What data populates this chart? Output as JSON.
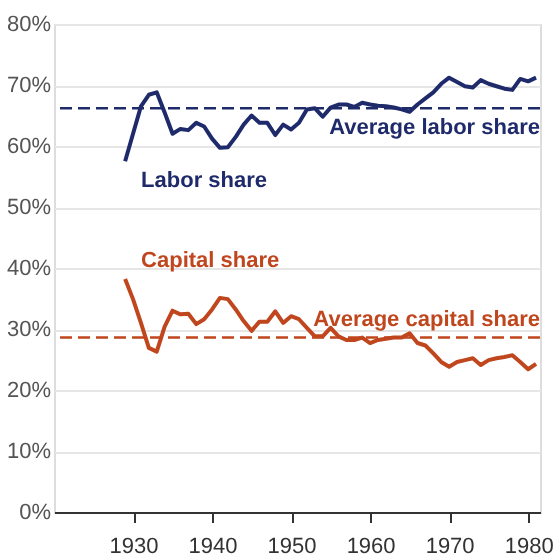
{
  "chart_data": {
    "type": "line",
    "x": [
      1929,
      1930,
      1931,
      1932,
      1933,
      1934,
      1935,
      1936,
      1937,
      1938,
      1939,
      1940,
      1941,
      1942,
      1943,
      1944,
      1945,
      1946,
      1947,
      1948,
      1949,
      1950,
      1951,
      1952,
      1953,
      1954,
      1955,
      1956,
      1957,
      1958,
      1959,
      1960,
      1961,
      1962,
      1963,
      1964,
      1965,
      1966,
      1967,
      1968,
      1969,
      1970,
      1971,
      1972,
      1973,
      1974,
      1975,
      1976,
      1977,
      1978,
      1979,
      1980,
      1981
    ],
    "series": [
      {
        "name": "Labor share",
        "color": "#1f2a6b",
        "values": [
          57.5,
          62,
          66.5,
          68.4,
          68.8,
          65.5,
          62,
          62.8,
          62.6,
          63.8,
          63.2,
          61.2,
          59.7,
          59.8,
          61.5,
          63.5,
          65,
          63.8,
          63.8,
          61.8,
          63.5,
          62.7,
          63.8,
          66,
          66.2,
          64.8,
          66.3,
          66.8,
          66.8,
          66.4,
          67.1,
          66.8,
          66.6,
          66.5,
          66.3,
          66,
          65.6,
          66.8,
          67.8,
          68.8,
          70.2,
          71.2,
          70.5,
          69.8,
          69.6,
          70.8,
          70.2,
          69.8,
          69.4,
          69.2,
          71,
          70.6,
          71.2
        ]
      },
      {
        "name": "Capital share",
        "color": "#c0461e",
        "values": [
          38.2,
          34.9,
          31,
          26.9,
          26.3,
          30.4,
          33,
          32.4,
          32.5,
          30.8,
          31.6,
          33.2,
          35.1,
          34.9,
          33.2,
          31.3,
          29.7,
          31.2,
          31.2,
          32.9,
          31,
          32.1,
          31.6,
          30.2,
          28.8,
          28.8,
          30.2,
          28.8,
          28.2,
          28.2,
          28.6,
          27.7,
          28.2,
          28.4,
          28.6,
          28.6,
          29.3,
          27.7,
          27.3,
          26,
          24.6,
          23.8,
          24.6,
          24.9,
          25.2,
          24.1,
          24.9,
          25.2,
          25.4,
          25.7,
          24.6,
          23.4,
          24.3
        ]
      }
    ],
    "xlim": [
      1920,
      1981.5
    ],
    "xticks": [
      1930,
      1940,
      1950,
      1960,
      1970,
      1980
    ],
    "ylim": [
      0,
      80
    ],
    "yticks": [
      {
        "value": 0,
        "label": "0%"
      },
      {
        "value": 10,
        "label": "10%"
      },
      {
        "value": 20,
        "label": "20%"
      },
      {
        "value": 30,
        "label": "30%"
      },
      {
        "value": 40,
        "label": "40%"
      },
      {
        "value": 50,
        "label": "50%"
      },
      {
        "value": 60,
        "label": "60%"
      },
      {
        "value": 70,
        "label": "70%"
      },
      {
        "value": 80,
        "label": "80%"
      }
    ],
    "ref_lines": [
      {
        "axis": "y",
        "value": 66.2,
        "label": "Average labor share",
        "color": "#1f2a6b",
        "line_style": "dashed"
      },
      {
        "axis": "y",
        "value": 28.6,
        "label": "Average capital share",
        "color": "#c0461e",
        "line_style": "dashed"
      }
    ],
    "grid": "y",
    "marker": "none",
    "line_style": "solid"
  }
}
